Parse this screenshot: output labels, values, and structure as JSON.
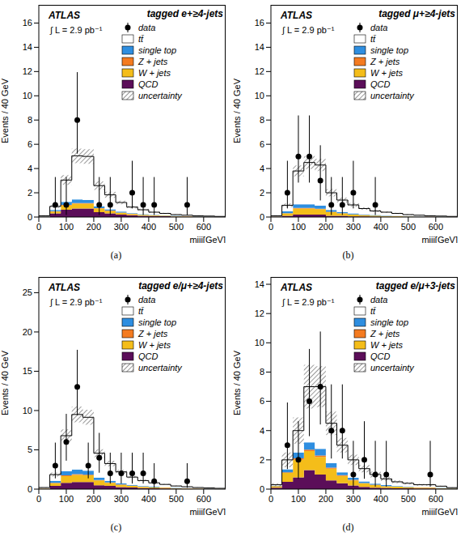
{
  "chart_data": [
    {
      "type": "histogram",
      "stacked": true,
      "legend": "upper right",
      "experiment": "ATLAS",
      "title": "tagged e+≥4-jets",
      "luminosity": "∫ L = 2.9 pb⁻¹",
      "panel": "(a)",
      "x_label": "mjjj[GeV]",
      "y_label": "Events / 40 GeV",
      "bins": [
        0,
        40,
        80,
        120,
        160,
        200,
        240,
        280,
        320,
        360,
        400,
        440,
        480,
        520,
        560,
        600,
        640,
        680
      ],
      "xlim": [
        0,
        680
      ],
      "xticks": [
        0,
        100,
        200,
        300,
        400,
        500,
        600
      ],
      "ylim": [
        0,
        17.5
      ],
      "yticks": [
        0,
        2,
        4,
        6,
        8,
        10,
        12,
        14,
        16
      ],
      "series": [
        {
          "name": "QCD",
          "color": "#5b0e59",
          "values": [
            0.02,
            0.3,
            0.6,
            0.7,
            0.7,
            0.4,
            0.3,
            0.2,
            0.15,
            0.1,
            0.08,
            0.06,
            0.04,
            0.03,
            0.02,
            0.02,
            0.01
          ]
        },
        {
          "name": "W + jets",
          "color": "#f4bd1a",
          "values": [
            0.02,
            0.15,
            0.35,
            0.4,
            0.4,
            0.3,
            0.2,
            0.15,
            0.1,
            0.08,
            0.06,
            0.05,
            0.04,
            0.03,
            0.02,
            0.02,
            0.01
          ]
        },
        {
          "name": "Z + jets",
          "color": "#f47b20",
          "values": [
            0,
            0.03,
            0.05,
            0.05,
            0.05,
            0.04,
            0.03,
            0.02,
            0.02,
            0.01,
            0.01,
            0.01,
            0.01,
            0,
            0,
            0,
            0
          ]
        },
        {
          "name": "single top",
          "color": "#2e8ee0",
          "values": [
            0.01,
            0.1,
            0.25,
            0.3,
            0.25,
            0.15,
            0.1,
            0.08,
            0.05,
            0.04,
            0.03,
            0.02,
            0.02,
            0.01,
            0.01,
            0.01,
            0
          ]
        },
        {
          "name": "tt̄",
          "color": "#ffffff",
          "values": [
            0.05,
            0.3,
            1.8,
            3.6,
            3.6,
            1.7,
            1.2,
            0.75,
            0.5,
            0.37,
            0.22,
            0.16,
            0.09,
            0.08,
            0.05,
            0.03,
            0.03
          ]
        }
      ],
      "uncertainty": {
        "name": "uncertainty",
        "values": [
          0.02,
          0.15,
          0.4,
          0.6,
          0.6,
          0.35,
          0.25,
          0.15,
          0.1,
          0.08,
          0.06,
          0.05,
          0.04,
          0.03,
          0.02,
          0.02,
          0.01
        ]
      },
      "data": {
        "name": "data",
        "x": [
          60,
          100,
          140,
          220,
          260,
          340,
          380,
          420,
          540
        ],
        "values": [
          1,
          1,
          8,
          1,
          1,
          2,
          1,
          1,
          1
        ],
        "error_low": [
          0.83,
          0.83,
          2.77,
          0.83,
          0.83,
          1.29,
          0.83,
          0.83,
          0.83
        ],
        "error_high": [
          2.3,
          2.3,
          3.95,
          2.3,
          2.3,
          2.64,
          2.3,
          2.3,
          2.3
        ]
      }
    },
    {
      "type": "histogram",
      "stacked": true,
      "legend": "upper right",
      "experiment": "ATLAS",
      "title": "tagged μ+≥4-jets",
      "luminosity": "∫ L = 2.9 pb⁻¹",
      "panel": "(b)",
      "x_label": "mjjj[GeV]",
      "y_label": "Events / 40 GeV",
      "bins": [
        0,
        40,
        80,
        120,
        160,
        200,
        240,
        280,
        320,
        360,
        400,
        440,
        480,
        520,
        560,
        600,
        640,
        680
      ],
      "xlim": [
        0,
        680
      ],
      "xticks": [
        0,
        100,
        200,
        300,
        400,
        500,
        600
      ],
      "ylim": [
        0,
        17.5
      ],
      "yticks": [
        0,
        2,
        4,
        6,
        8,
        10,
        12,
        14,
        16
      ],
      "series": [
        {
          "name": "QCD",
          "color": "#5b0e59",
          "values": [
            0.01,
            0.1,
            0.2,
            0.2,
            0.2,
            0.1,
            0.1,
            0.05,
            0.05,
            0.03,
            0.02,
            0.02,
            0.01,
            0.01,
            0.01,
            0,
            0
          ]
        },
        {
          "name": "W + jets",
          "color": "#f4bd1a",
          "values": [
            0.02,
            0.2,
            0.5,
            0.5,
            0.45,
            0.3,
            0.2,
            0.15,
            0.1,
            0.08,
            0.06,
            0.05,
            0.04,
            0.03,
            0.02,
            0.02,
            0.01
          ]
        },
        {
          "name": "Z + jets",
          "color": "#f47b20",
          "values": [
            0,
            0.02,
            0.05,
            0.05,
            0.04,
            0.03,
            0.02,
            0.02,
            0.01,
            0.01,
            0.01,
            0.01,
            0,
            0,
            0,
            0,
            0
          ]
        },
        {
          "name": "single top",
          "color": "#2e8ee0",
          "values": [
            0.01,
            0.15,
            0.3,
            0.3,
            0.25,
            0.15,
            0.1,
            0.08,
            0.05,
            0.04,
            0.03,
            0.02,
            0.02,
            0.01,
            0.01,
            0.01,
            0
          ]
        },
        {
          "name": "tt̄",
          "color": "#ffffff",
          "values": [
            0.06,
            0.5,
            2.75,
            3.45,
            3.35,
            1.42,
            0.98,
            0.7,
            0.49,
            0.34,
            0.28,
            0.2,
            0.13,
            0.1,
            0.06,
            0.05,
            0.04
          ]
        }
      ],
      "uncertainty": {
        "name": "uncertainty",
        "values": [
          0.02,
          0.15,
          0.45,
          0.55,
          0.5,
          0.3,
          0.2,
          0.15,
          0.1,
          0.08,
          0.06,
          0.05,
          0.04,
          0.03,
          0.02,
          0.02,
          0.01
        ]
      },
      "data": {
        "name": "data",
        "x": [
          60,
          100,
          140,
          180,
          220,
          260,
          300,
          380
        ],
        "values": [
          2,
          5,
          5,
          3,
          1,
          1,
          2,
          1
        ],
        "error_low": [
          1.29,
          2.16,
          2.16,
          1.63,
          0.83,
          0.83,
          1.29,
          0.83
        ],
        "error_high": [
          2.64,
          3.38,
          3.38,
          2.92,
          2.3,
          2.3,
          2.64,
          2.3
        ]
      }
    },
    {
      "type": "histogram",
      "stacked": true,
      "legend": "upper right",
      "experiment": "ATLAS",
      "title": "tagged e/μ+≥4-jets",
      "luminosity": "∫ L = 2.9 pb⁻¹",
      "panel": "(c)",
      "x_label": "mjjj[GeV]",
      "y_label": "Events / 40 GeV",
      "bins": [
        0,
        40,
        80,
        120,
        160,
        200,
        240,
        280,
        320,
        360,
        400,
        440,
        480,
        520,
        560,
        600,
        640,
        680
      ],
      "xlim": [
        0,
        680
      ],
      "xticks": [
        0,
        100,
        200,
        300,
        400,
        500,
        600
      ],
      "ylim": [
        0,
        27
      ],
      "yticks": [
        0,
        5,
        10,
        15,
        20,
        25
      ],
      "series": [
        {
          "name": "QCD",
          "color": "#5b0e59",
          "values": [
            0.03,
            0.4,
            0.8,
            0.9,
            0.9,
            0.5,
            0.4,
            0.25,
            0.2,
            0.13,
            0.1,
            0.08,
            0.05,
            0.04,
            0.03,
            0.02,
            0.01
          ]
        },
        {
          "name": "W + jets",
          "color": "#f4bd1a",
          "values": [
            0.04,
            0.35,
            0.85,
            0.9,
            0.85,
            0.6,
            0.4,
            0.3,
            0.2,
            0.16,
            0.12,
            0.1,
            0.08,
            0.06,
            0.04,
            0.04,
            0.02
          ]
        },
        {
          "name": "Z + jets",
          "color": "#f47b20",
          "values": [
            0,
            0.05,
            0.1,
            0.1,
            0.09,
            0.07,
            0.05,
            0.04,
            0.03,
            0.02,
            0.02,
            0.02,
            0.01,
            0,
            0,
            0,
            0
          ]
        },
        {
          "name": "single top",
          "color": "#2e8ee0",
          "values": [
            0.02,
            0.25,
            0.55,
            0.6,
            0.5,
            0.3,
            0.2,
            0.16,
            0.1,
            0.08,
            0.06,
            0.04,
            0.04,
            0.02,
            0.02,
            0.02,
            0
          ]
        },
        {
          "name": "tt̄",
          "color": "#ffffff",
          "values": [
            0.11,
            0.8,
            4.5,
            7.0,
            6.8,
            3.1,
            2.2,
            1.45,
            1.0,
            0.7,
            0.5,
            0.36,
            0.22,
            0.18,
            0.11,
            0.07,
            0.07
          ]
        }
      ],
      "uncertainty": {
        "name": "uncertainty",
        "values": [
          0.04,
          0.25,
          0.8,
          1.0,
          0.95,
          0.5,
          0.35,
          0.25,
          0.15,
          0.12,
          0.1,
          0.08,
          0.06,
          0.04,
          0.03,
          0.03,
          0.02
        ]
      },
      "data": {
        "name": "data",
        "x": [
          60,
          100,
          140,
          180,
          220,
          260,
          300,
          340,
          380,
          420,
          540
        ],
        "values": [
          3,
          6,
          13,
          3,
          4,
          2,
          2,
          2,
          2,
          1,
          1
        ],
        "error_low": [
          1.63,
          2.38,
          3.58,
          1.63,
          1.91,
          1.29,
          1.29,
          1.29,
          1.29,
          0.83,
          0.83
        ],
        "error_high": [
          2.92,
          3.58,
          4.73,
          2.92,
          3.16,
          2.64,
          2.64,
          2.64,
          2.64,
          2.3,
          2.3
        ]
      }
    },
    {
      "type": "histogram",
      "stacked": true,
      "legend": "upper right",
      "experiment": "ATLAS",
      "title": "tagged e/μ+3-jets",
      "luminosity": "∫ L = 2.9 pb⁻¹",
      "panel": "(d)",
      "x_label": "mjjj[GeV]",
      "y_label": "Events / 40 GeV",
      "bins": [
        0,
        40,
        80,
        120,
        160,
        200,
        240,
        280,
        320,
        360,
        400,
        440,
        480,
        520,
        560,
        600,
        640,
        680
      ],
      "xlim": [
        0,
        680
      ],
      "xticks": [
        0,
        100,
        200,
        300,
        400,
        500,
        600
      ],
      "ylim": [
        0,
        14.5
      ],
      "yticks": [
        0,
        2,
        4,
        6,
        8,
        10,
        12,
        14
      ],
      "series": [
        {
          "name": "QCD",
          "color": "#5b0e59",
          "values": [
            0.1,
            0.5,
            0.8,
            1.3,
            1.0,
            0.6,
            0.4,
            0.25,
            0.15,
            0.1,
            0.08,
            0.06,
            0.05,
            0.04,
            0.04,
            0.03,
            0.02
          ]
        },
        {
          "name": "W + jets",
          "color": "#f4bd1a",
          "values": [
            0.1,
            0.6,
            1.2,
            1.3,
            1.2,
            0.8,
            0.5,
            0.35,
            0.25,
            0.18,
            0.12,
            0.1,
            0.08,
            0.06,
            0.06,
            0.04,
            0.02
          ]
        },
        {
          "name": "Z + jets",
          "color": "#f47b20",
          "values": [
            0.01,
            0.05,
            0.1,
            0.1,
            0.1,
            0.07,
            0.05,
            0.03,
            0.02,
            0.02,
            0.01,
            0.01,
            0.01,
            0.01,
            0.01,
            0,
            0
          ]
        },
        {
          "name": "single top",
          "color": "#2e8ee0",
          "values": [
            0.02,
            0.2,
            0.4,
            0.5,
            0.45,
            0.3,
            0.2,
            0.15,
            0.1,
            0.08,
            0.06,
            0.04,
            0.03,
            0.02,
            0.02,
            0.02,
            0.01
          ]
        },
        {
          "name": "tt̄",
          "color": "#ffffff",
          "values": [
            0.07,
            0.65,
            1.5,
            3.8,
            4.25,
            2.73,
            1.85,
            1.22,
            0.88,
            0.62,
            0.43,
            0.29,
            0.23,
            0.17,
            0.17,
            0.11,
            0.05
          ]
        }
      ],
      "uncertainty": {
        "name": "uncertainty",
        "values": [
          0.1,
          0.5,
          0.9,
          1.5,
          1.4,
          0.8,
          0.5,
          0.35,
          0.25,
          0.2,
          0.15,
          0.1,
          0.08,
          0.06,
          0.06,
          0.04,
          0.03
        ]
      },
      "data": {
        "name": "data",
        "x": [
          60,
          100,
          140,
          180,
          220,
          260,
          300,
          340,
          380,
          420,
          580
        ],
        "values": [
          3,
          2,
          6,
          7,
          4,
          4,
          1,
          2,
          1,
          1,
          1
        ],
        "error_low": [
          1.63,
          1.29,
          2.38,
          2.58,
          1.91,
          1.91,
          0.83,
          1.29,
          0.83,
          0.83,
          0.83
        ],
        "error_high": [
          2.92,
          2.64,
          3.58,
          3.77,
          3.16,
          3.16,
          2.3,
          2.64,
          2.3,
          2.3,
          2.3
        ]
      }
    }
  ]
}
